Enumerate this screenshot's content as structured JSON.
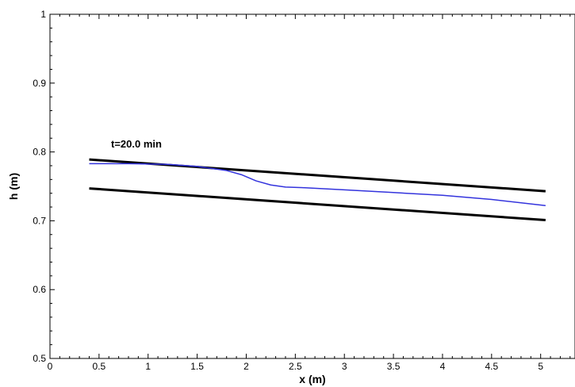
{
  "chart_data": {
    "type": "line",
    "xlabel": "x (m)",
    "ylabel": "h (m)",
    "xlim": [
      0,
      5.35
    ],
    "ylim": [
      0.5,
      1.0
    ],
    "x_ticks": [
      "0",
      "0.5",
      "1",
      "1.5",
      "2",
      "2.5",
      "3",
      "3.5",
      "4",
      "4.5",
      "5"
    ],
    "y_ticks": [
      "0.5",
      "0.6",
      "0.7",
      "0.8",
      "0.9",
      "1"
    ],
    "annotation": "t=20.0 min",
    "grid": false,
    "colors": {
      "bounds": "#000000",
      "profile": "#3333dd"
    },
    "series": [
      {
        "color": "#000000",
        "x": [
          0.4,
          5.05
        ],
        "y": [
          0.789,
          0.743
        ]
      },
      {
        "color": "#000000",
        "x": [
          0.4,
          5.05
        ],
        "y": [
          0.747,
          0.701
        ]
      },
      {
        "color": "#3333dd",
        "x": [
          0.4,
          0.8,
          1.2,
          1.5,
          1.8,
          1.95,
          2.1,
          2.25,
          2.4,
          2.6,
          3.0,
          3.5,
          4.0,
          4.5,
          5.05
        ],
        "y": [
          0.783,
          0.783,
          0.782,
          0.779,
          0.773,
          0.767,
          0.758,
          0.752,
          0.749,
          0.748,
          0.745,
          0.741,
          0.737,
          0.731,
          0.722
        ]
      }
    ]
  }
}
